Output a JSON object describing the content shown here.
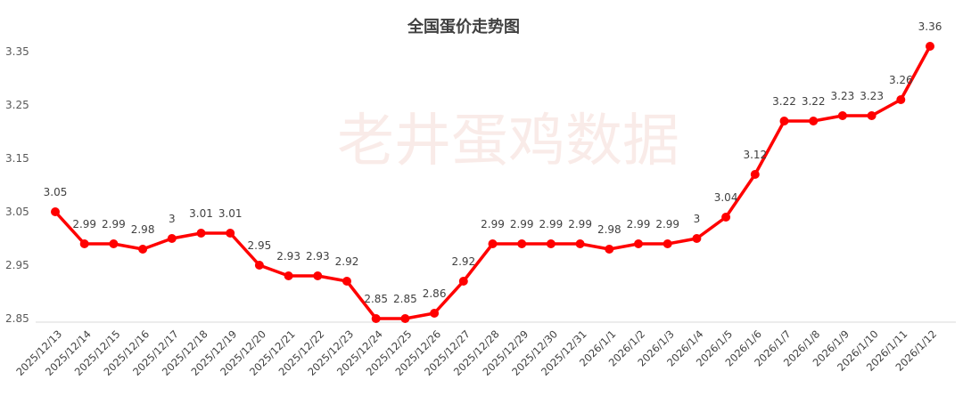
{
  "chart_data": {
    "type": "line",
    "title": "全国蛋价走势图",
    "watermark": "老井蛋鸡数据",
    "xlabel": "",
    "ylabel": "",
    "ylim": [
      2.85,
      3.4
    ],
    "yticks": [
      "2.85",
      "2.95",
      "3.05",
      "3.15",
      "3.25",
      "3.35"
    ],
    "grid": false,
    "legend": "none",
    "line_color": "#ff0000",
    "categories": [
      "2025/12/13",
      "2025/12/14",
      "2025/12/15",
      "2025/12/16",
      "2025/12/17",
      "2025/12/18",
      "2025/12/19",
      "2025/12/20",
      "2025/12/21",
      "2025/12/22",
      "2025/12/23",
      "2025/12/24",
      "2025/12/25",
      "2025/12/26",
      "2025/12/27",
      "2025/12/28",
      "2025/12/29",
      "2025/12/30",
      "2025/12/31",
      "2026/1/1",
      "2026/1/2",
      "2026/1/3",
      "2026/1/4",
      "2026/1/5",
      "2026/1/6",
      "2026/1/7",
      "2026/1/8",
      "2026/1/9",
      "2026/1/10",
      "2026/1/11",
      "2026/1/12"
    ],
    "values": [
      3.05,
      2.99,
      2.99,
      2.98,
      3,
      3.01,
      3.01,
      2.95,
      2.93,
      2.93,
      2.92,
      2.85,
      2.85,
      2.86,
      2.92,
      2.99,
      2.99,
      2.99,
      2.99,
      2.98,
      2.99,
      2.99,
      3,
      3.04,
      3.12,
      3.22,
      3.22,
      3.23,
      3.23,
      3.26,
      3.36
    ],
    "data_labels": [
      "3.05",
      "2.99",
      "2.99",
      "2.98",
      "3",
      "3.01",
      "3.01",
      "2.95",
      "2.93",
      "2.93",
      "2.92",
      "2.85",
      "2.85",
      "2.86",
      "2.92",
      "2.99",
      "2.99",
      "2.99",
      "2.99",
      "2.98",
      "2.99",
      "2.99",
      "3",
      "3.04",
      "3.12",
      "3.22",
      "3.22",
      "3.23",
      "3.23",
      "3.26",
      "3.36"
    ]
  }
}
